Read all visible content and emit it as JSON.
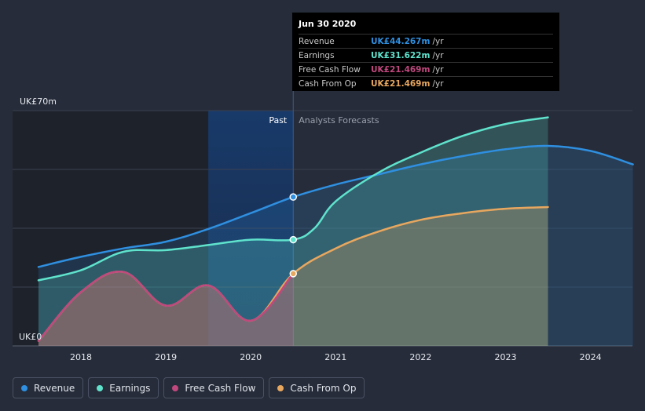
{
  "chart_data": {
    "type": "line",
    "y_top_label": "UK£70m",
    "y_bottom_label": "UK£0",
    "ylim": [
      0,
      70
    ],
    "xlim": [
      2017.5,
      2024.5
    ],
    "x_ticks": [
      "2018",
      "2019",
      "2020",
      "2021",
      "2022",
      "2023",
      "2024"
    ],
    "x_tick_values": [
      2018,
      2019,
      2020,
      2021,
      2022,
      2023,
      2024
    ],
    "past_label": "Past",
    "forecast_label": "Analysts Forecasts",
    "divider_x": 2020.5,
    "series": [
      {
        "name": "Revenue",
        "color": "#2f8fe0",
        "points": [
          [
            2017.5,
            23.5
          ],
          [
            2018.0,
            26.5
          ],
          [
            2018.5,
            29.0
          ],
          [
            2019.0,
            31.0
          ],
          [
            2019.5,
            34.8
          ],
          [
            2020.0,
            39.5
          ],
          [
            2020.5,
            44.3
          ],
          [
            2021.0,
            48.0
          ],
          [
            2021.5,
            51.0
          ],
          [
            2022.0,
            54.0
          ],
          [
            2022.5,
            56.5
          ],
          [
            2023.0,
            58.5
          ],
          [
            2023.5,
            59.5
          ],
          [
            2024.0,
            58.0
          ],
          [
            2024.5,
            54.0
          ]
        ]
      },
      {
        "name": "Earnings",
        "color": "#5fe3cd",
        "points": [
          [
            2017.5,
            19.5
          ],
          [
            2018.0,
            22.5
          ],
          [
            2018.5,
            28.0
          ],
          [
            2019.0,
            28.5
          ],
          [
            2019.5,
            30.0
          ],
          [
            2020.0,
            31.6
          ],
          [
            2020.5,
            31.6
          ],
          [
            2020.75,
            35.0
          ],
          [
            2021.0,
            43.0
          ],
          [
            2021.5,
            51.5
          ],
          [
            2022.0,
            57.5
          ],
          [
            2022.5,
            62.5
          ],
          [
            2023.0,
            66.0
          ],
          [
            2023.5,
            68.0
          ]
        ]
      },
      {
        "name": "Free Cash Flow",
        "color": "#c0487e",
        "points": [
          [
            2017.5,
            1.5
          ],
          [
            2018.0,
            16.0
          ],
          [
            2018.5,
            22.0
          ],
          [
            2019.0,
            12.0
          ],
          [
            2019.5,
            18.0
          ],
          [
            2020.0,
            7.5
          ],
          [
            2020.5,
            21.5
          ]
        ]
      },
      {
        "name": "Cash From Op",
        "color": "#e8a75f",
        "points": [
          [
            2017.5,
            1.5
          ],
          [
            2018.0,
            16.0
          ],
          [
            2018.5,
            22.0
          ],
          [
            2019.0,
            12.0
          ],
          [
            2019.5,
            18.0
          ],
          [
            2020.0,
            7.5
          ],
          [
            2020.5,
            21.5
          ],
          [
            2021.0,
            29.0
          ],
          [
            2021.5,
            34.0
          ],
          [
            2022.0,
            37.5
          ],
          [
            2022.5,
            39.5
          ],
          [
            2023.0,
            40.8
          ],
          [
            2023.5,
            41.3
          ]
        ]
      }
    ],
    "tooltip": {
      "date": "Jun 30 2020",
      "rows": [
        {
          "label": "Revenue",
          "value": "UK£44.267m",
          "unit": "/yr",
          "color": "#2f8fe0"
        },
        {
          "label": "Earnings",
          "value": "UK£31.622m",
          "unit": "/yr",
          "color": "#5fe3cd"
        },
        {
          "label": "Free Cash Flow",
          "value": "UK£21.469m",
          "unit": "/yr",
          "color": "#c0487e"
        },
        {
          "label": "Cash From Op",
          "value": "UK£21.469m",
          "unit": "/yr",
          "color": "#e8a75f"
        }
      ]
    },
    "legend": [
      {
        "label": "Revenue",
        "color": "#2f8fe0"
      },
      {
        "label": "Earnings",
        "color": "#5fe3cd"
      },
      {
        "label": "Free Cash Flow",
        "color": "#c0487e"
      },
      {
        "label": "Cash From Op",
        "color": "#e8a75f"
      }
    ]
  }
}
